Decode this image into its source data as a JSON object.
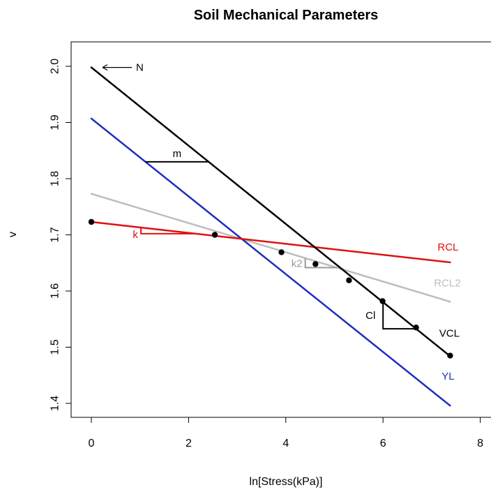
{
  "chart_data": {
    "type": "line",
    "title": "Soil Mechanical Parameters",
    "xlabel": "ln[Stress(kPa)]",
    "ylabel": "v",
    "xlim": [
      0,
      8
    ],
    "ylim": [
      1.4,
      2.0
    ],
    "x_ticks": [
      0,
      2,
      4,
      6,
      8
    ],
    "y_ticks": [
      1.4,
      1.5,
      1.6,
      1.7,
      1.8,
      1.9,
      2.0
    ],
    "x_tick_labels": [
      "0",
      "2",
      "4",
      "6",
      "8"
    ],
    "y_tick_labels": [
      "1.4",
      "1.5",
      "1.6",
      "1.7",
      "1.8",
      "1.9",
      "2.0"
    ],
    "grid": false,
    "series": [
      {
        "name": "VCL",
        "color": "#000000",
        "x": [
          0,
          7.38
        ],
        "y": [
          1.998,
          1.484
        ]
      },
      {
        "name": "YL",
        "color": "#1f2fbf",
        "x": [
          0,
          7.38
        ],
        "y": [
          1.907,
          1.396
        ]
      },
      {
        "name": "RCL",
        "color": "#e01010",
        "x": [
          0,
          7.38
        ],
        "y": [
          1.723,
          1.651
        ]
      },
      {
        "name": "RCL2",
        "color": "#bdbdbd",
        "x": [
          0,
          7.38
        ],
        "y": [
          1.773,
          1.581
        ]
      }
    ],
    "points": {
      "color": "#000000",
      "x": [
        0,
        2.54,
        3.91,
        4.61,
        5.3,
        5.99,
        6.68,
        7.38
      ],
      "y": [
        1.723,
        1.7,
        1.669,
        1.648,
        1.619,
        1.582,
        1.535,
        1.485
      ]
    },
    "annotations": [
      {
        "text": "N",
        "color": "#000000"
      },
      {
        "text": "m",
        "color": "#000000"
      },
      {
        "text": "k",
        "color": "#e01010"
      },
      {
        "text": "k2",
        "color": "#999999"
      },
      {
        "text": "Cl",
        "color": "#000000"
      }
    ]
  }
}
